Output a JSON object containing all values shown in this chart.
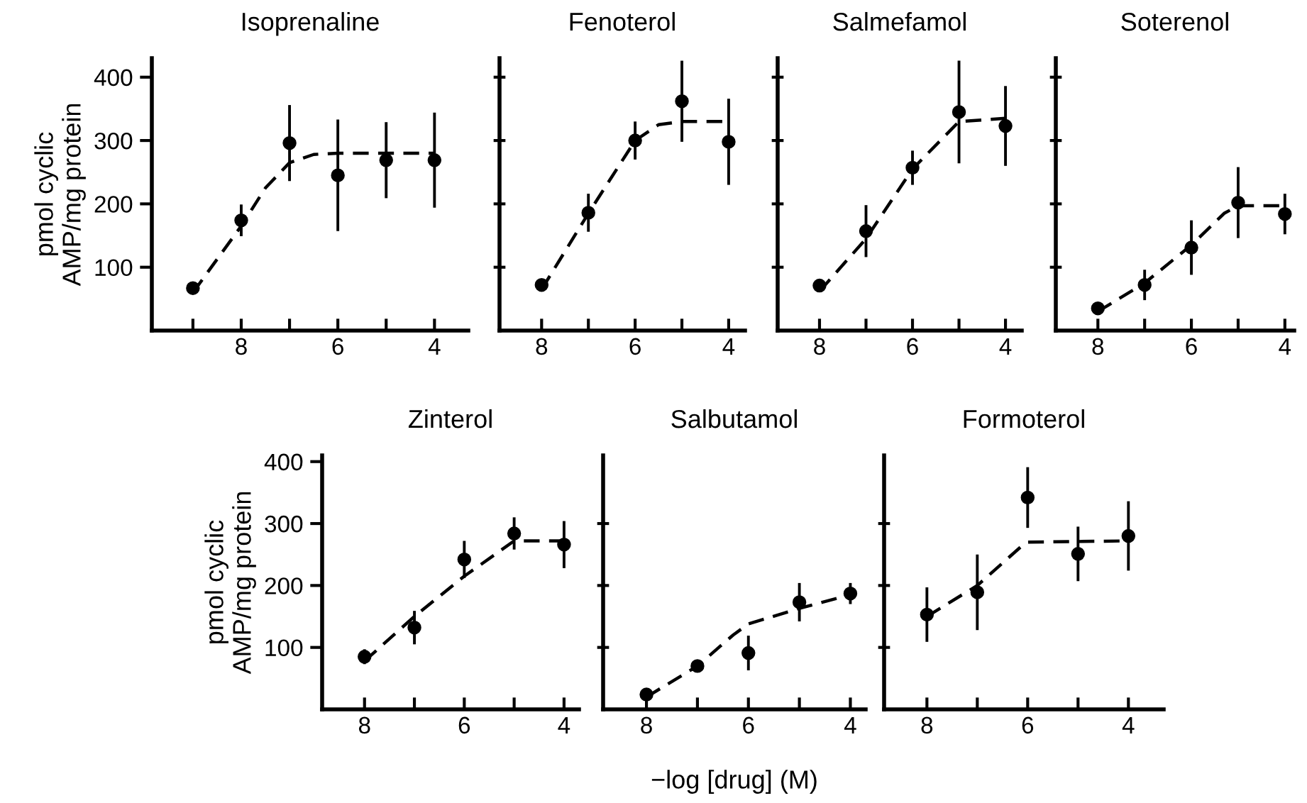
{
  "chart_data": [
    {
      "type": "scatter",
      "title": "Isoprenaline",
      "ylabel": "pmol cyclic\nAMP/mg protein",
      "xlim": [
        9.85,
        3.3
      ],
      "xticks": [
        {
          "value": 9,
          "label": null
        },
        8,
        {
          "value": 7,
          "label": null
        },
        6,
        {
          "value": 5,
          "label": null
        },
        4
      ],
      "ylim": [
        0,
        430
      ],
      "yticks": [
        100,
        200,
        300,
        400
      ],
      "series": [
        {
          "type": "scatter",
          "color": "#000000",
          "marker": "circle",
          "x": [
            9,
            8,
            7,
            6,
            5,
            4
          ],
          "values": [
            67,
            174,
            296,
            245,
            269,
            269
          ],
          "errors": [
            8,
            25,
            60,
            88,
            60,
            75
          ]
        },
        {
          "type": "line",
          "color": "#000000",
          "line_style": "dashed",
          "x": [
            9,
            8,
            7.5,
            7,
            6.5,
            6,
            4
          ],
          "values": [
            60,
            165,
            225,
            265,
            278,
            280,
            280
          ]
        }
      ]
    },
    {
      "type": "scatter",
      "title": "Fenoterol",
      "tick_labels": "x",
      "xlim": [
        8.9,
        3.65
      ],
      "xticks": [
        8,
        {
          "value": 7,
          "label": null
        },
        6,
        {
          "value": 5,
          "label": null
        },
        4
      ],
      "ylim": [
        0,
        430
      ],
      "yticks": [
        {
          "value": 100,
          "label": null
        },
        {
          "value": 200,
          "label": null
        },
        {
          "value": 300,
          "label": null
        },
        {
          "value": 400,
          "label": null
        }
      ],
      "series": [
        {
          "type": "scatter",
          "color": "#000000",
          "marker": "circle",
          "x": [
            8,
            7,
            6,
            5,
            4
          ],
          "values": [
            72,
            186,
            300,
            362,
            298
          ],
          "errors": [
            6,
            30,
            30,
            64,
            68
          ]
        },
        {
          "type": "line",
          "color": "#000000",
          "line_style": "dashed",
          "x": [
            8,
            7,
            6,
            5.5,
            5,
            4
          ],
          "values": [
            65,
            185,
            300,
            325,
            330,
            330
          ]
        }
      ]
    },
    {
      "type": "scatter",
      "title": "Salmefamol",
      "tick_labels": "x",
      "xlim": [
        8.9,
        3.65
      ],
      "xticks": [
        8,
        {
          "value": 7,
          "label": null
        },
        6,
        {
          "value": 5,
          "label": null
        },
        4
      ],
      "ylim": [
        0,
        430
      ],
      "yticks": [
        {
          "value": 100,
          "label": null
        },
        {
          "value": 200,
          "label": null
        },
        {
          "value": 300,
          "label": null
        },
        {
          "value": 400,
          "label": null
        }
      ],
      "series": [
        {
          "type": "scatter",
          "color": "#000000",
          "marker": "circle",
          "x": [
            8,
            7,
            6,
            5,
            4
          ],
          "values": [
            71,
            157,
            257,
            345,
            323
          ],
          "errors": [
            10,
            41,
            27,
            81,
            63
          ]
        },
        {
          "type": "line",
          "color": "#000000",
          "line_style": "dashed",
          "x": [
            8,
            7,
            6,
            5,
            4
          ],
          "values": [
            62,
            145,
            255,
            330,
            335
          ]
        }
      ]
    },
    {
      "type": "scatter",
      "title": "Soterenol",
      "tick_labels": "x",
      "xlim": [
        8.9,
        3.8
      ],
      "xticks": [
        8,
        {
          "value": 7,
          "label": null
        },
        6,
        {
          "value": 5,
          "label": null
        },
        4
      ],
      "ylim": [
        0,
        430
      ],
      "yticks": [
        {
          "value": 100,
          "label": null
        },
        {
          "value": 200,
          "label": null
        },
        {
          "value": 300,
          "label": null
        },
        {
          "value": 400,
          "label": null
        }
      ],
      "series": [
        {
          "type": "scatter",
          "color": "#000000",
          "marker": "circle",
          "x": [
            8,
            7,
            6,
            5,
            4
          ],
          "values": [
            35,
            72,
            131,
            202,
            184
          ],
          "errors": [
            6,
            24,
            43,
            56,
            32
          ]
        },
        {
          "type": "line",
          "color": "#000000",
          "line_style": "dashed",
          "x": [
            8,
            7,
            6,
            5.3,
            5,
            4
          ],
          "values": [
            30,
            75,
            135,
            185,
            197,
            197
          ]
        }
      ]
    },
    {
      "type": "scatter",
      "title": "Zinterol",
      "ylabel": "pmol cyclic\nAMP/mg protein",
      "xlim": [
        8.85,
        3.7
      ],
      "xticks": [
        8,
        {
          "value": 7,
          "label": null
        },
        6,
        {
          "value": 5,
          "label": null
        },
        4
      ],
      "ylim": [
        0,
        410
      ],
      "yticks": [
        100,
        200,
        300,
        400
      ],
      "series": [
        {
          "type": "scatter",
          "color": "#000000",
          "marker": "circle",
          "x": [
            8,
            7,
            6,
            5,
            4
          ],
          "values": [
            85,
            132,
            242,
            284,
            266
          ],
          "errors": [
            12,
            27,
            30,
            26,
            38
          ]
        },
        {
          "type": "line",
          "color": "#000000",
          "line_style": "dashed",
          "x": [
            8,
            7,
            6,
            5,
            4
          ],
          "values": [
            78,
            150,
            215,
            272,
            272
          ]
        }
      ]
    },
    {
      "type": "scatter",
      "title": "Salbutamol",
      "xlabel": "−log [drug] (M)",
      "tick_labels": "x",
      "xlim": [
        8.85,
        3.7
      ],
      "xticks": [
        8,
        {
          "value": 7,
          "label": null
        },
        6,
        {
          "value": 5,
          "label": null
        },
        4
      ],
      "ylim": [
        0,
        410
      ],
      "yticks": [
        {
          "value": 100,
          "label": null
        },
        {
          "value": 200,
          "label": null
        },
        {
          "value": 300,
          "label": null
        }
      ],
      "series": [
        {
          "type": "scatter",
          "color": "#000000",
          "marker": "circle",
          "x": [
            8,
            7,
            6,
            5,
            4
          ],
          "values": [
            24,
            70,
            91,
            173,
            187
          ],
          "errors": [
            5,
            6,
            28,
            31,
            17
          ]
        },
        {
          "type": "line",
          "color": "#000000",
          "line_style": "dashed",
          "x": [
            8,
            7,
            6.3,
            6,
            5,
            4
          ],
          "values": [
            20,
            70,
            120,
            138,
            163,
            185
          ]
        }
      ]
    },
    {
      "type": "scatter",
      "title": "Formoterol",
      "tick_labels": "x",
      "xlim": [
        8.85,
        3.3
      ],
      "xticks": [
        8,
        {
          "value": 7,
          "label": null
        },
        6,
        {
          "value": 5,
          "label": null
        },
        4
      ],
      "ylim": [
        0,
        410
      ],
      "yticks": [
        {
          "value": 100,
          "label": null
        },
        {
          "value": 200,
          "label": null
        },
        {
          "value": 300,
          "label": null
        }
      ],
      "series": [
        {
          "type": "scatter",
          "color": "#000000",
          "marker": "circle",
          "x": [
            8,
            7,
            6,
            5,
            4
          ],
          "values": [
            153,
            189,
            342,
            251,
            280
          ],
          "errors": [
            44,
            61,
            49,
            44,
            56
          ]
        },
        {
          "type": "line",
          "color": "#000000",
          "line_style": "dashed",
          "x": [
            8,
            7,
            6.1,
            6,
            4
          ],
          "values": [
            150,
            200,
            265,
            270,
            272
          ]
        }
      ]
    }
  ]
}
